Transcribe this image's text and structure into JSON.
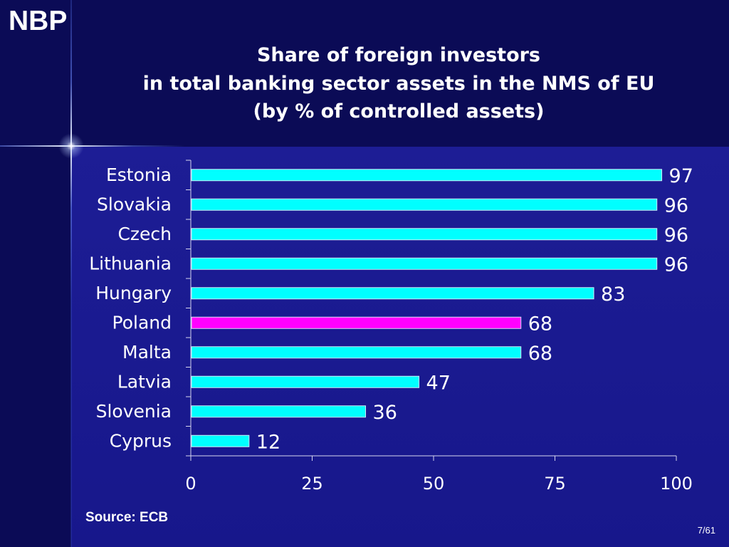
{
  "brand": {
    "logo_text": "NBP"
  },
  "theme": {
    "background": "#0b0b56",
    "panel_top": "#1d1d95",
    "panel_bottom": "#17178b",
    "text": "#ffffff",
    "bar": "#00ffff",
    "highlight_bar": "#ff00ff"
  },
  "chart_data": {
    "type": "bar",
    "orientation": "horizontal",
    "title": [
      "Share of foreign investors",
      "in total banking sector assets in the NMS of EU",
      "(by % of controlled assets)"
    ],
    "categories": [
      "Estonia",
      "Slovakia",
      "Czech",
      "Lithuania",
      "Hungary",
      "Poland",
      "Malta",
      "Latvia",
      "Slovenia",
      "Cyprus"
    ],
    "values": [
      97,
      96,
      96,
      96,
      83,
      68,
      68,
      47,
      36,
      12
    ],
    "bar_colors": [
      "#00ffff",
      "#00ffff",
      "#00ffff",
      "#00ffff",
      "#00ffff",
      "#ff00ff",
      "#00ffff",
      "#00ffff",
      "#00ffff",
      "#00ffff"
    ],
    "data_labels": true,
    "xlim": [
      0,
      100
    ],
    "xticks": [
      0,
      25,
      50,
      75,
      100
    ],
    "grid": false,
    "legend": false
  },
  "footer": {
    "source": "Source: ECB",
    "page_number": "7/61"
  }
}
